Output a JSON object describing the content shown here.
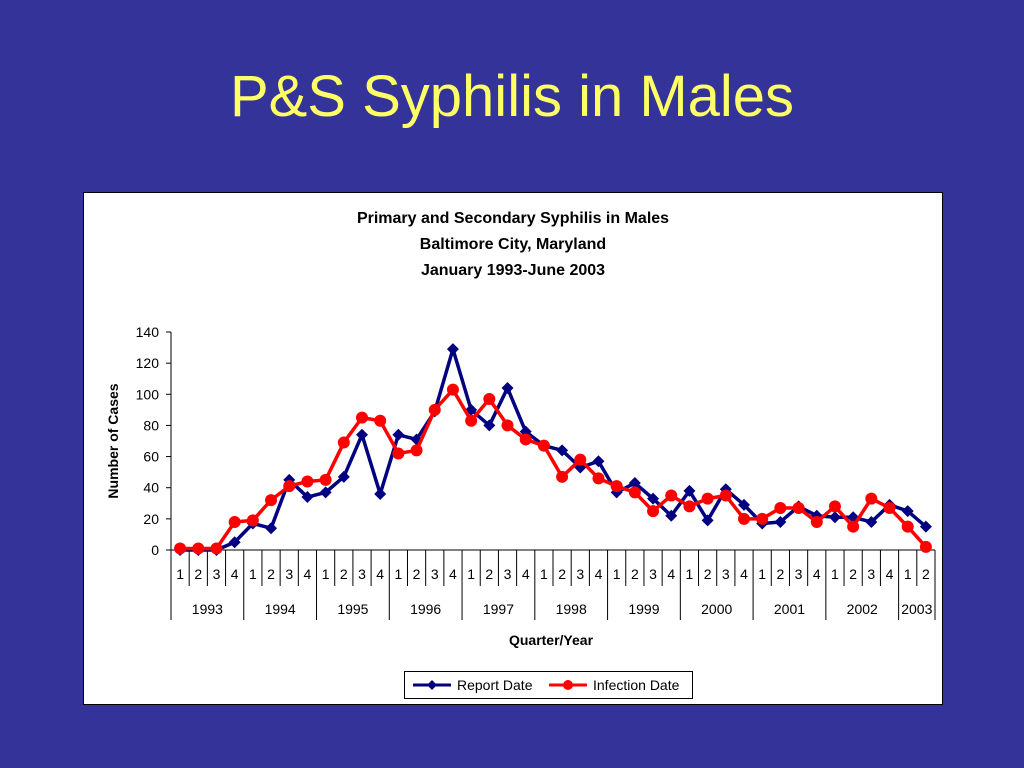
{
  "slide": {
    "title": "P&S Syphilis in Males"
  },
  "colors": {
    "background": "#333399",
    "title": "#ffff66",
    "report": "#000080",
    "infection": "#ff0000"
  },
  "chart_data": {
    "type": "line",
    "title": [
      "Primary and Secondary Syphilis in Males",
      "Baltimore City, Maryland",
      "January 1993-June 2003"
    ],
    "xlabel": "Quarter/Year",
    "ylabel": "Number of Cases",
    "ylim": [
      0,
      140
    ],
    "yticks": [
      0,
      20,
      40,
      60,
      80,
      100,
      120,
      140
    ],
    "grid": false,
    "legend_position": "bottom-center",
    "years": [
      {
        "label": "1993",
        "quarters": [
          "1",
          "2",
          "3",
          "4"
        ]
      },
      {
        "label": "1994",
        "quarters": [
          "1",
          "2",
          "3",
          "4"
        ]
      },
      {
        "label": "1995",
        "quarters": [
          "1",
          "2",
          "3",
          "4"
        ]
      },
      {
        "label": "1996",
        "quarters": [
          "1",
          "2",
          "3",
          "4"
        ]
      },
      {
        "label": "1997",
        "quarters": [
          "1",
          "2",
          "3",
          "4"
        ]
      },
      {
        "label": "1998",
        "quarters": [
          "1",
          "2",
          "3",
          "4"
        ]
      },
      {
        "label": "1999",
        "quarters": [
          "1",
          "2",
          "3",
          "4"
        ]
      },
      {
        "label": "2000",
        "quarters": [
          "1",
          "2",
          "3",
          "4"
        ]
      },
      {
        "label": "2001",
        "quarters": [
          "1",
          "2",
          "3",
          "4"
        ]
      },
      {
        "label": "2002",
        "quarters": [
          "1",
          "2",
          "3",
          "4"
        ]
      },
      {
        "label": "2003",
        "quarters": [
          "1",
          "2"
        ]
      }
    ],
    "series": [
      {
        "name": "Report Date",
        "color": "#000080",
        "marker": "diamond",
        "values": [
          0,
          0,
          0,
          5,
          17,
          14,
          45,
          34,
          37,
          47,
          74,
          36,
          74,
          71,
          89,
          129,
          90,
          80,
          104,
          76,
          67,
          64,
          53,
          57,
          37,
          43,
          33,
          22,
          38,
          19,
          39,
          29,
          17,
          18,
          28,
          22,
          21,
          21,
          18,
          29,
          25,
          15
        ]
      },
      {
        "name": "Infection Date",
        "color": "#ff0000",
        "marker": "circle",
        "values": [
          1,
          1,
          1,
          18,
          19,
          32,
          41,
          44,
          45,
          69,
          85,
          83,
          62,
          64,
          90,
          103,
          83,
          97,
          80,
          71,
          67,
          47,
          58,
          46,
          41,
          37,
          25,
          35,
          28,
          33,
          35,
          20,
          20,
          27,
          27,
          18,
          28,
          15,
          33,
          27,
          15,
          2
        ]
      }
    ]
  }
}
